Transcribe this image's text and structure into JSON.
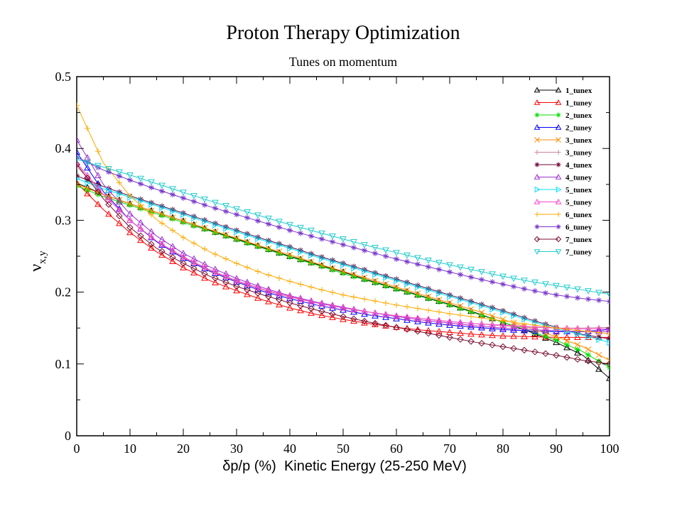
{
  "chart_data": {
    "type": "line",
    "title": "Proton Therapy Optimization",
    "subtitle": "Tunes on momentum",
    "ylabel_main": "ν",
    "ylabel_sub": "x,y",
    "xlabel": "δp/p (%)  Kinetic Energy (25-250 MeV)",
    "xlim": [
      0,
      100
    ],
    "ylim": [
      0,
      0.5
    ],
    "x_ticks": [
      0,
      10,
      20,
      30,
      40,
      50,
      60,
      70,
      80,
      90,
      100
    ],
    "y_ticks": [
      0,
      0.1,
      0.2,
      0.3,
      0.4,
      0.5
    ],
    "x_tick_labels": [
      "0",
      "10",
      "20",
      "30",
      "40",
      "50",
      "60",
      "70",
      "80",
      "90",
      "100"
    ],
    "y_tick_labels": [
      "0",
      "0.1",
      "0.2",
      "0.3",
      "0.4",
      "0.5"
    ],
    "grid": false,
    "legend_position": "top-right",
    "marker_step": 2,
    "x": [
      0,
      5,
      10,
      15,
      20,
      25,
      30,
      35,
      40,
      45,
      50,
      55,
      60,
      65,
      70,
      75,
      80,
      85,
      90,
      95,
      100
    ],
    "series": [
      {
        "name": "1_tunex",
        "color": "#000000",
        "marker": "triangle",
        "values": [
          0.352,
          0.336,
          0.323,
          0.311,
          0.299,
          0.286,
          0.274,
          0.262,
          0.25,
          0.239,
          0.228,
          0.216,
          0.205,
          0.194,
          0.183,
          0.171,
          0.158,
          0.145,
          0.13,
          0.112,
          0.08
        ]
      },
      {
        "name": "1_tuney",
        "color": "#ff0000",
        "marker": "triangle",
        "values": [
          0.352,
          0.315,
          0.283,
          0.256,
          0.234,
          0.216,
          0.202,
          0.189,
          0.178,
          0.169,
          0.162,
          0.156,
          0.151,
          0.147,
          0.144,
          0.141,
          0.139,
          0.138,
          0.137,
          0.137,
          0.137
        ]
      },
      {
        "name": "2_tunex",
        "color": "#00dd00",
        "marker": "star",
        "values": [
          0.348,
          0.333,
          0.321,
          0.309,
          0.297,
          0.285,
          0.273,
          0.261,
          0.249,
          0.238,
          0.226,
          0.215,
          0.204,
          0.193,
          0.182,
          0.17,
          0.158,
          0.146,
          0.133,
          0.117,
          0.095
        ]
      },
      {
        "name": "2_tuney",
        "color": "#0000ff",
        "marker": "triangle",
        "values": [
          0.395,
          0.34,
          0.3,
          0.27,
          0.247,
          0.229,
          0.214,
          0.201,
          0.191,
          0.182,
          0.175,
          0.168,
          0.163,
          0.158,
          0.154,
          0.151,
          0.148,
          0.146,
          0.145,
          0.145,
          0.148
        ]
      },
      {
        "name": "3_tunex",
        "color": "#ff8c00",
        "marker": "x",
        "values": [
          0.35,
          0.336,
          0.323,
          0.311,
          0.299,
          0.287,
          0.275,
          0.263,
          0.252,
          0.24,
          0.229,
          0.218,
          0.207,
          0.196,
          0.185,
          0.174,
          0.162,
          0.15,
          0.138,
          0.124,
          0.105
        ]
      },
      {
        "name": "3_tuney",
        "color": "#cc8899",
        "marker": "plus",
        "values": [
          0.375,
          0.336,
          0.3,
          0.271,
          0.248,
          0.23,
          0.215,
          0.203,
          0.193,
          0.185,
          0.178,
          0.172,
          0.167,
          0.163,
          0.159,
          0.156,
          0.153,
          0.151,
          0.15,
          0.15,
          0.151
        ]
      },
      {
        "name": "4_tunex",
        "color": "#6b0035",
        "marker": "star",
        "values": [
          0.362,
          0.347,
          0.334,
          0.322,
          0.31,
          0.298,
          0.286,
          0.274,
          0.263,
          0.251,
          0.24,
          0.229,
          0.218,
          0.207,
          0.196,
          0.185,
          0.174,
          0.162,
          0.151,
          0.141,
          0.135
        ]
      },
      {
        "name": "4_tuney",
        "color": "#9933cc",
        "marker": "triangle",
        "values": [
          0.412,
          0.35,
          0.309,
          0.278,
          0.254,
          0.235,
          0.219,
          0.206,
          0.195,
          0.186,
          0.179,
          0.172,
          0.166,
          0.161,
          0.157,
          0.153,
          0.15,
          0.148,
          0.146,
          0.145,
          0.145
        ]
      },
      {
        "name": "5_tunex",
        "color": "#00e0ff",
        "marker": "triangle-right",
        "values": [
          0.358,
          0.344,
          0.332,
          0.32,
          0.308,
          0.296,
          0.284,
          0.272,
          0.261,
          0.249,
          0.238,
          0.227,
          0.216,
          0.205,
          0.194,
          0.183,
          0.172,
          0.16,
          0.149,
          0.14,
          0.13
        ]
      },
      {
        "name": "5_tuney",
        "color": "#ff44cc",
        "marker": "triangle",
        "values": [
          0.38,
          0.336,
          0.3,
          0.271,
          0.249,
          0.231,
          0.216,
          0.204,
          0.194,
          0.185,
          0.178,
          0.172,
          0.167,
          0.163,
          0.159,
          0.156,
          0.154,
          0.152,
          0.15,
          0.149,
          0.149
        ]
      },
      {
        "name": "6_tunex",
        "color": "#ffaa00",
        "marker": "plus",
        "values": [
          0.46,
          0.38,
          0.334,
          0.301,
          0.276,
          0.256,
          0.24,
          0.226,
          0.215,
          0.205,
          0.196,
          0.189,
          0.182,
          0.176,
          0.17,
          0.165,
          0.16,
          0.155,
          0.15,
          0.146,
          0.142
        ]
      },
      {
        "name": "6_tuney",
        "color": "#7733cc",
        "marker": "star",
        "values": [
          0.388,
          0.37,
          0.356,
          0.343,
          0.331,
          0.319,
          0.308,
          0.297,
          0.286,
          0.276,
          0.266,
          0.256,
          0.246,
          0.237,
          0.228,
          0.219,
          0.211,
          0.203,
          0.196,
          0.191,
          0.187
        ]
      },
      {
        "name": "7_tunex",
        "color": "#7a1030",
        "marker": "diamond",
        "values": [
          0.378,
          0.33,
          0.29,
          0.261,
          0.24,
          0.222,
          0.208,
          0.196,
          0.185,
          0.175,
          0.166,
          0.158,
          0.151,
          0.144,
          0.137,
          0.13,
          0.124,
          0.118,
          0.112,
          0.105,
          0.1
        ]
      },
      {
        "name": "7_tuney",
        "color": "#22cccc",
        "marker": "triangle-down",
        "values": [
          0.385,
          0.374,
          0.363,
          0.351,
          0.339,
          0.327,
          0.316,
          0.305,
          0.294,
          0.284,
          0.274,
          0.264,
          0.255,
          0.246,
          0.238,
          0.23,
          0.222,
          0.215,
          0.209,
          0.203,
          0.197
        ]
      }
    ]
  }
}
